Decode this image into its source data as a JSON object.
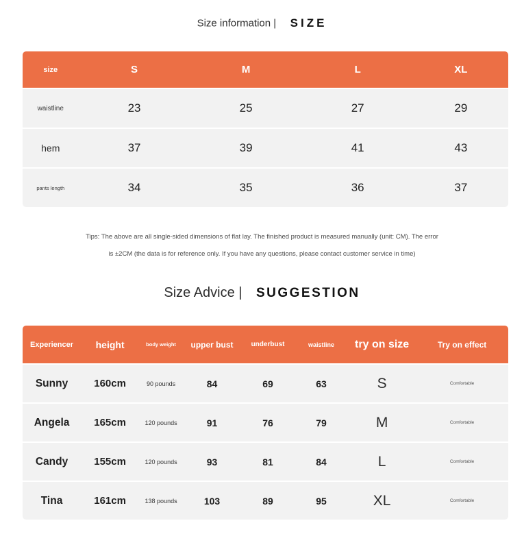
{
  "colors": {
    "accent": "#EC6F45",
    "row_bg": "#F2F2F2",
    "page_bg": "#FFFFFF"
  },
  "section_size": {
    "heading": {
      "label": "Size information |",
      "title": "SIZE"
    },
    "table": {
      "header": [
        "size",
        "S",
        "M",
        "L",
        "XL"
      ],
      "rows": [
        {
          "label": "waistline",
          "values": [
            "23",
            "25",
            "27",
            "29"
          ]
        },
        {
          "label": "hem",
          "values": [
            "37",
            "39",
            "41",
            "43"
          ]
        },
        {
          "label": "pants length",
          "values": [
            "34",
            "35",
            "36",
            "37"
          ]
        }
      ]
    },
    "tips": {
      "line1": "Tips: The above are all single-sided dimensions of flat lay. The finished product is measured manually (unit: CM). The error",
      "line2": "is ±2CM (the data is for reference only. If you have any questions, please contact customer service in time)"
    }
  },
  "section_suggestion": {
    "heading": {
      "label": "Size Advice |",
      "title": "SUGGESTION"
    },
    "table": {
      "header": [
        "Experiencer",
        "height",
        "body weight",
        "upper bust",
        "underbust",
        "waistline",
        "try on size",
        "Try on effect"
      ],
      "rows": [
        [
          "Sunny",
          "160cm",
          "90 pounds",
          "84",
          "69",
          "63",
          "S",
          "Comfortable"
        ],
        [
          "Angela",
          "165cm",
          "120 pounds",
          "91",
          "76",
          "79",
          "M",
          "Comfortable"
        ],
        [
          "Candy",
          "155cm",
          "120 pounds",
          "93",
          "81",
          "84",
          "L",
          "Comfortable"
        ],
        [
          "Tina",
          "161cm",
          "138 pounds",
          "103",
          "89",
          "95",
          "XL",
          "Comfortable"
        ]
      ]
    }
  }
}
